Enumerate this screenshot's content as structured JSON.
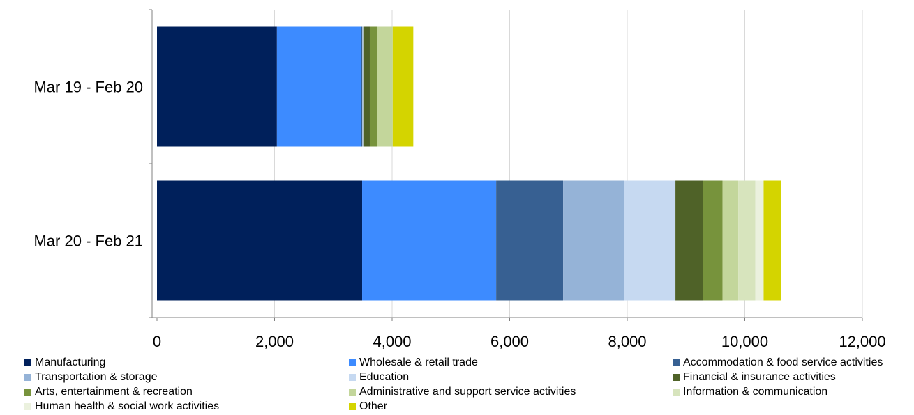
{
  "chart_data": {
    "type": "bar",
    "orientation": "horizontal",
    "stacked": true,
    "title": "",
    "xlabel": "",
    "ylabel": "",
    "xlim": [
      0,
      12000
    ],
    "x_ticks": [
      0,
      2000,
      4000,
      6000,
      8000,
      10000,
      12000
    ],
    "x_tick_labels": [
      "0",
      "2,000",
      "4,000",
      "6,000",
      "8,000",
      "10,000",
      "12,000"
    ],
    "categories": [
      "Mar 19 - Feb 20",
      "Mar 20 - Feb 21"
    ],
    "grid": true,
    "legend_position": "bottom",
    "series": [
      {
        "name": "Manufacturing",
        "color": "#00205B",
        "values": [
          2040,
          3490
        ]
      },
      {
        "name": "Wholesale & retail trade",
        "color": "#3D8BFF",
        "values": [
          1430,
          2280
        ]
      },
      {
        "name": "Accommodation & food service activities",
        "color": "#376092",
        "values": [
          20,
          1140
        ]
      },
      {
        "name": "Transportation & storage",
        "color": "#95B3D7",
        "values": [
          10,
          1040
        ]
      },
      {
        "name": "Education",
        "color": "#C6D9F1",
        "values": [
          10,
          870
        ]
      },
      {
        "name": "Financial & insurance activities",
        "color": "#4F6228",
        "values": [
          110,
          470
        ]
      },
      {
        "name": "Arts, entertainment & recreation",
        "color": "#77933C",
        "values": [
          120,
          330
        ]
      },
      {
        "name": "Administrative and support service activities",
        "color": "#C3D69B",
        "values": [
          270,
          270
        ]
      },
      {
        "name": "Information & communication",
        "color": "#D7E4BD",
        "values": [
          0,
          290
        ]
      },
      {
        "name": "Human health & social work activities",
        "color": "#EBF1DE",
        "values": [
          0,
          140
        ]
      },
      {
        "name": "Other",
        "color": "#D4D400",
        "values": [
          350,
          300
        ]
      }
    ]
  }
}
